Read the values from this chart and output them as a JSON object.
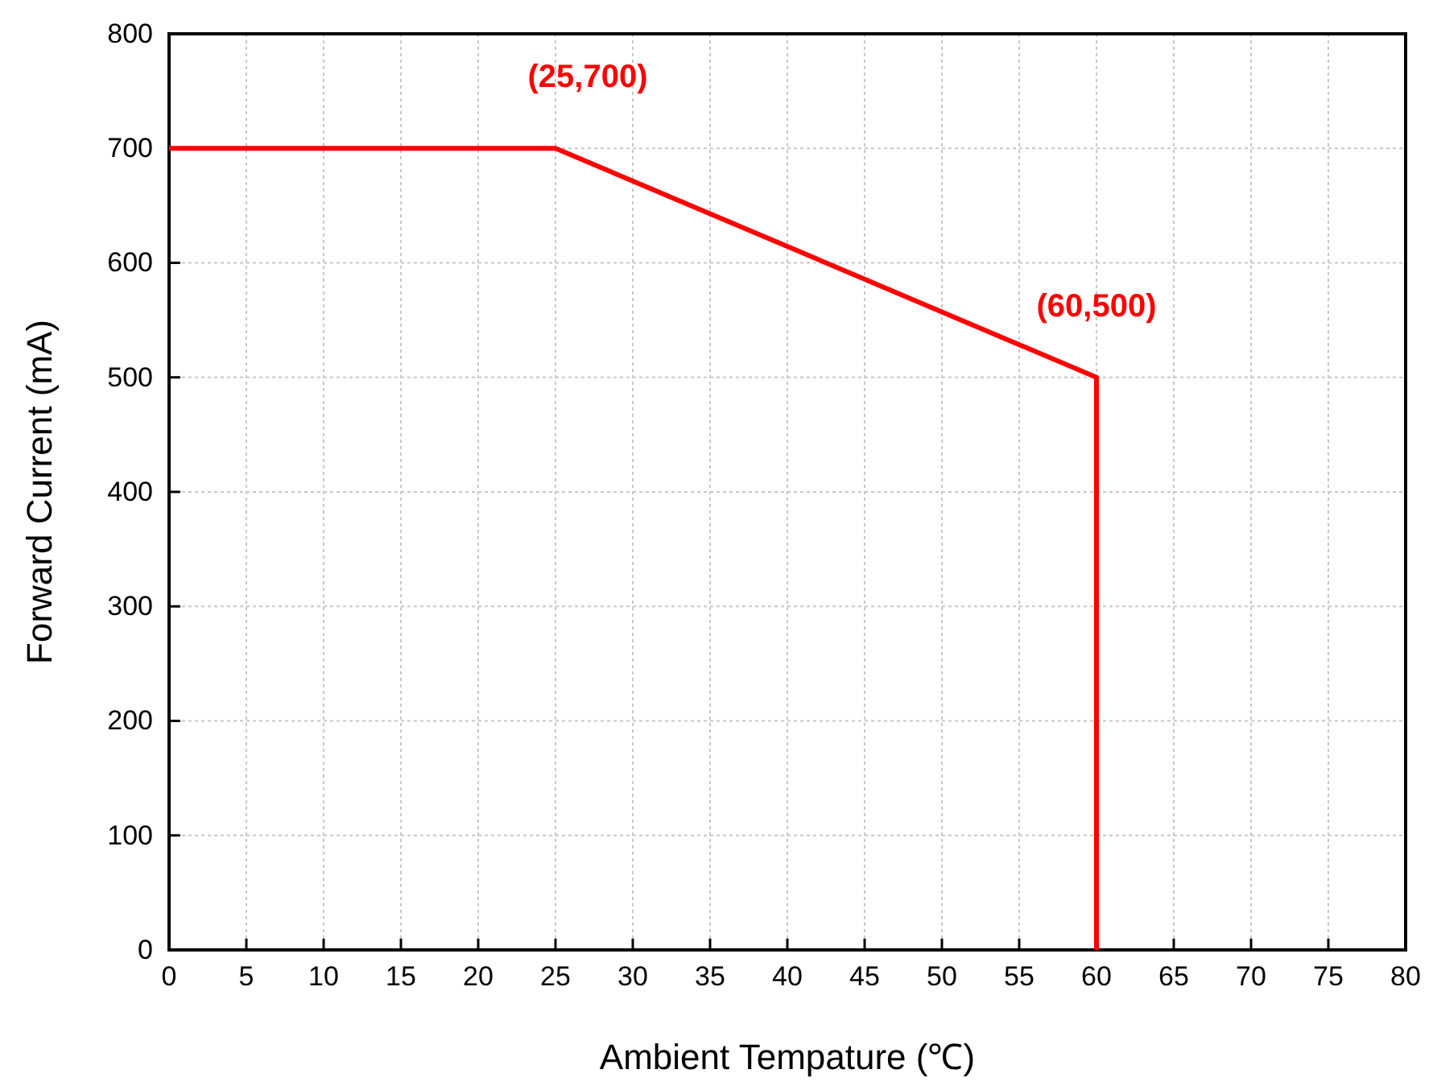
{
  "chart_data": {
    "type": "line",
    "xlabel": "Ambient Tempature (℃)",
    "ylabel": "Forward Current (mA)",
    "x": [
      0,
      25,
      60,
      60
    ],
    "series": [
      {
        "color": "#ff0000",
        "values": [
          700,
          700,
          500,
          0
        ]
      }
    ],
    "xlim": [
      0,
      80
    ],
    "xticks": [
      0,
      5,
      10,
      15,
      20,
      25,
      30,
      35,
      40,
      45,
      50,
      55,
      60,
      65,
      70,
      75,
      80
    ],
    "ylim": [
      0,
      800
    ],
    "yticks": [
      0,
      100,
      200,
      300,
      400,
      500,
      600,
      700,
      800
    ],
    "grid": true,
    "marker": "none",
    "line_style": "solid",
    "annotations": [
      {
        "text": "(25,700)",
        "x": 25,
        "y": 700
      },
      {
        "text": "(60,500)",
        "x": 60,
        "y": 500
      }
    ]
  }
}
